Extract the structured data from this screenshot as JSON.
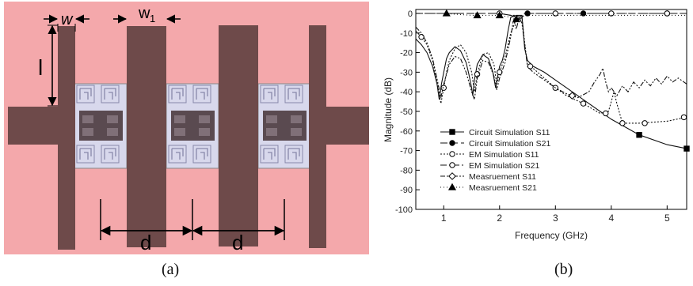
{
  "panel_a": {
    "labels": {
      "w": "w",
      "w1": "w",
      "w1_sub": "1",
      "l": "l",
      "d_left": "d",
      "d_right": "d"
    },
    "caption": "(a)",
    "colors": {
      "substrate": "#f4a8ab",
      "strip": "#6e4a4a",
      "resonator": "#d8d8ec"
    }
  },
  "panel_b": {
    "caption": "(b)"
  },
  "chart_data": {
    "type": "line",
    "title": "",
    "xlabel": "Frequency (GHz)",
    "ylabel": "Magnitude (dB)",
    "xlim": [
      0.5,
      5.35
    ],
    "ylim": [
      -100,
      2
    ],
    "x_ticks": [
      1,
      2,
      3,
      4,
      5
    ],
    "x_tick_labels": [
      "1",
      "2",
      "3",
      "4",
      "5"
    ],
    "y_ticks": [
      0,
      -10,
      -20,
      -30,
      -40,
      -50,
      -60,
      -70,
      -80,
      -90,
      -100
    ],
    "y_tick_labels": [
      "0",
      "-10",
      "-20",
      "-30",
      "-40",
      "-50",
      "-60",
      "-70",
      "-80",
      "-90",
      "-100"
    ],
    "legend_position": "bottom-left",
    "grid": false,
    "series": [
      {
        "name": "Circuit Simulation S11",
        "dash": "",
        "marker": "square-filled",
        "x": [
          0.5,
          0.6,
          0.7,
          0.8,
          0.88,
          0.92,
          0.96,
          1.0,
          1.05,
          1.1,
          1.2,
          1.3,
          1.4,
          1.45,
          1.5,
          1.52,
          1.55,
          1.6,
          1.7,
          1.8,
          1.88,
          1.93,
          1.96,
          2.0,
          2.05,
          2.1,
          2.15,
          2.2,
          2.3,
          2.4,
          2.45,
          2.5,
          2.6,
          2.8,
          3.0,
          3.2,
          3.5,
          4.0,
          4.5,
          5.0,
          5.35
        ],
        "y": [
          -13,
          -16,
          -20,
          -27,
          -36,
          -44,
          -36,
          -30,
          -23,
          -20,
          -17,
          -19,
          -25,
          -31,
          -38,
          -42,
          -34,
          -26,
          -21,
          -23,
          -30,
          -38,
          -33,
          -27,
          -24,
          -18,
          -9,
          -2,
          -1,
          -1,
          -18,
          -24,
          -27,
          -30,
          -34,
          -38,
          -44,
          -54,
          -62,
          -67,
          -69
        ],
        "markers_x": [
          4.5,
          5.35
        ],
        "markers_y": [
          -62,
          -69
        ]
      },
      {
        "name": "Circuit Simulation S21",
        "dash": "9,4",
        "marker": "circle-filled",
        "x": [
          0.5,
          1.0,
          1.5,
          2.0,
          2.2,
          2.3,
          2.35,
          2.4,
          2.45,
          3.0,
          4.0,
          5.0,
          5.35
        ],
        "y": [
          0,
          0,
          0,
          0,
          -1,
          -2,
          -3,
          -2,
          0,
          0,
          0,
          0,
          0
        ],
        "markers_x": [
          2.5,
          3.5,
          5.0
        ],
        "markers_y": [
          0,
          0,
          0
        ]
      },
      {
        "name": "EM Simulation S11",
        "dash": "2,2",
        "marker": "circle-open",
        "x": [
          0.5,
          0.6,
          0.7,
          0.8,
          0.9,
          0.95,
          1.0,
          1.05,
          1.1,
          1.2,
          1.3,
          1.4,
          1.5,
          1.55,
          1.6,
          1.7,
          1.8,
          1.9,
          1.95,
          2.0,
          2.1,
          2.2,
          2.3,
          2.4,
          2.45,
          2.5,
          2.6,
          2.8,
          3.0,
          3.2,
          3.5,
          3.8,
          3.95,
          4.0,
          4.05,
          4.1,
          4.2,
          4.5,
          5.0,
          5.35
        ],
        "y": [
          -9,
          -12,
          -16,
          -24,
          -38,
          -46,
          -38,
          -30,
          -24,
          -18,
          -16,
          -20,
          -30,
          -40,
          -31,
          -21,
          -20,
          -26,
          -36,
          -30,
          -22,
          -10,
          -3,
          -2,
          -15,
          -27,
          -28,
          -33,
          -38,
          -42,
          -46,
          -51,
          -50,
          -45,
          -40,
          -46,
          -56,
          -56,
          -55,
          -53
        ],
        "markers_x": [
          0.6,
          1.0,
          1.6,
          2.0,
          2.55,
          3.0,
          3.5,
          3.9,
          4.2,
          4.6,
          5.3
        ],
        "markers_y": [
          -12,
          -38,
          -31,
          -30,
          -27,
          -38,
          -46,
          -51,
          -56,
          -56,
          -53
        ]
      },
      {
        "name": "EM Simulation S21",
        "dash": "8,3,2,3",
        "marker": "circle-open",
        "x": [
          0.5,
          1.0,
          1.5,
          2.0,
          2.2,
          2.3,
          2.35,
          2.4,
          2.45,
          3.0,
          4.0,
          5.0,
          5.35
        ],
        "y": [
          0,
          0,
          0,
          0,
          -1,
          -1,
          -2,
          -1,
          0,
          0,
          0,
          0,
          0
        ],
        "markers_x": [
          2.0,
          3.0,
          4.0,
          5.0
        ],
        "markers_y": [
          0,
          0,
          0,
          0
        ]
      },
      {
        "name": "Measruement S11",
        "dash": "6,2,2,2,2,2",
        "marker": "diamond-open",
        "x": [
          0.5,
          0.6,
          0.7,
          0.8,
          0.9,
          0.95,
          1.0,
          1.1,
          1.2,
          1.3,
          1.4,
          1.5,
          1.55,
          1.6,
          1.7,
          1.8,
          1.9,
          1.95,
          2.0,
          2.1,
          2.2,
          2.25,
          2.3,
          2.35,
          2.4,
          2.5,
          2.6,
          2.8,
          3.0,
          3.2,
          3.4,
          3.6,
          3.7,
          3.8,
          3.85,
          3.9,
          3.95,
          4.0,
          4.1,
          4.2,
          4.3,
          4.4,
          4.5,
          4.6,
          4.7,
          4.8,
          4.9,
          5.0,
          5.1,
          5.2,
          5.35
        ],
        "y": [
          -7,
          -10,
          -15,
          -23,
          -36,
          -43,
          -36,
          -26,
          -22,
          -23,
          -30,
          -40,
          -44,
          -33,
          -24,
          -25,
          -32,
          -39,
          -33,
          -25,
          -12,
          -3,
          -8,
          -2,
          -5,
          -27,
          -30,
          -34,
          -38,
          -41,
          -43,
          -40,
          -35,
          -31,
          -28,
          -35,
          -40,
          -38,
          -42,
          -37,
          -40,
          -35,
          -38,
          -34,
          -37,
          -33,
          -36,
          -32,
          -35,
          -33,
          -36
        ],
        "markers_x": [
          3.3
        ],
        "markers_y": [
          -42
        ]
      },
      {
        "name": "Measruement S21",
        "dash": "1,3",
        "marker": "triangle-filled",
        "x": [
          0.5,
          1.0,
          1.5,
          2.0,
          2.2,
          2.3,
          2.35,
          2.4,
          2.45,
          3.0,
          4.0,
          5.0,
          5.35
        ],
        "y": [
          0,
          0,
          -1,
          -1,
          -2,
          -3,
          -4,
          -2,
          -1,
          -1,
          -1,
          -1,
          -1
        ],
        "markers_x": [
          1.05,
          1.6,
          2.0,
          2.3
        ],
        "markers_y": [
          0,
          -1,
          -1,
          -3
        ]
      }
    ]
  }
}
